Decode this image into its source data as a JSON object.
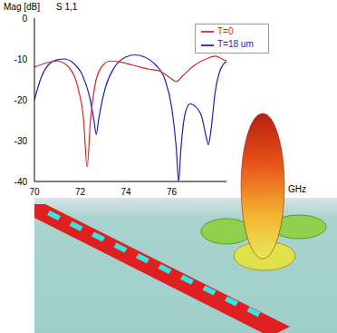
{
  "chart_data": {
    "type": "line",
    "title": "S 1,1",
    "y_label": "Mag [dB]",
    "x_label": "GHz",
    "xlim": [
      70,
      78.4
    ],
    "xticks": [
      70,
      72,
      74,
      76
    ],
    "ylim": [
      -40,
      0
    ],
    "yticks": [
      0,
      -10,
      -20,
      -30,
      -40
    ],
    "grid": false,
    "legend": "upper right",
    "series": [
      {
        "name": "T=18 um",
        "color": "#1f1fb4",
        "x": [
          70,
          70.3,
          70.6,
          71,
          71.3,
          71.7,
          72.1,
          72.4,
          72.6,
          72.7,
          72.8,
          73.1,
          73.5,
          74,
          74.4,
          74.8,
          75.3,
          75.7,
          76,
          76.2,
          76.3,
          76.4,
          76.6,
          76.8,
          77,
          77.3,
          77.5,
          77.6,
          77.7,
          77.9,
          78.1,
          78.4
        ],
        "values": [
          -20,
          -14.5,
          -11.5,
          -10.2,
          -10,
          -11,
          -14,
          -19,
          -25,
          -28.5,
          -25,
          -17,
          -12,
          -9.5,
          -9,
          -9.5,
          -11.5,
          -15,
          -22,
          -32,
          -40,
          -32,
          -23,
          -21,
          -21.5,
          -24,
          -29,
          -31,
          -28,
          -18,
          -13,
          -10.5
        ]
      },
      {
        "name": "T=0",
        "color": "#d42a2a",
        "x": [
          70,
          70.5,
          71,
          71.5,
          71.9,
          72.15,
          72.3,
          72.45,
          72.7,
          73,
          73.3,
          73.8,
          74.3,
          75,
          75.5,
          75.9,
          76.2,
          76.5,
          77,
          77.5,
          77.9,
          78.2,
          78.4
        ],
        "values": [
          -12,
          -11,
          -10.5,
          -12,
          -17,
          -25,
          -36.5,
          -25,
          -15,
          -11.5,
          -10.5,
          -10.8,
          -11.5,
          -12.5,
          -13,
          -14.5,
          -15.5,
          -14,
          -11.5,
          -10,
          -9.3,
          -10,
          -10.5
        ]
      }
    ]
  }
}
